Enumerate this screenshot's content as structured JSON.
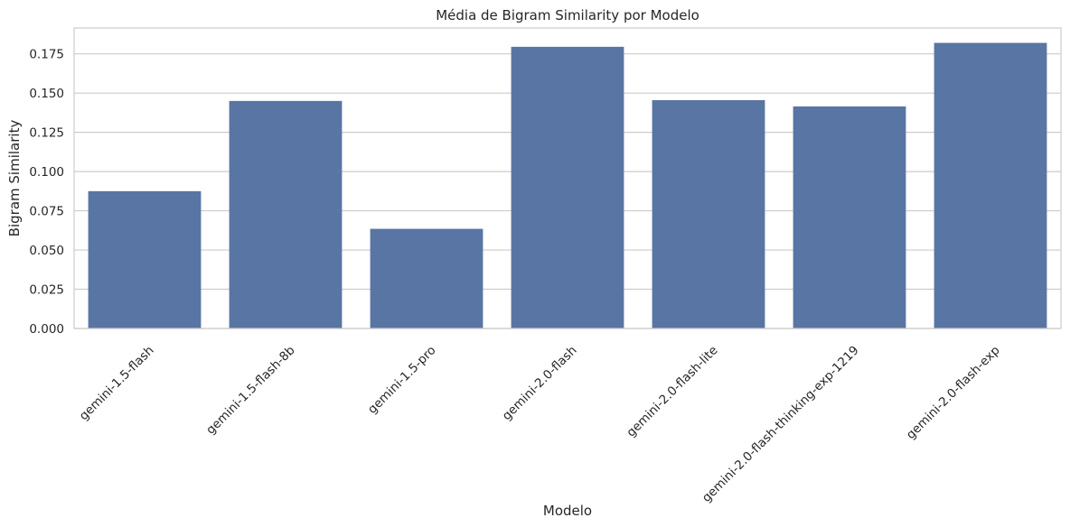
{
  "chart_data": {
    "type": "bar",
    "title": "Média de Bigram Similarity por Modelo",
    "xlabel": "Modelo",
    "ylabel": "Bigram Similarity",
    "categories": [
      "gemini-1.5-flash",
      "gemini-1.5-flash-8b",
      "gemini-1.5-pro",
      "gemini-2.0-flash",
      "gemini-2.0-flash-lite",
      "gemini-2.0-flash-thinking-exp-1219",
      "gemini-2.0-flash-exp"
    ],
    "values": [
      0.0875,
      0.145,
      0.0635,
      0.1795,
      0.1455,
      0.1415,
      0.182
    ],
    "ylim": [
      0,
      0.1915
    ],
    "yticks": [
      "0.000",
      "0.025",
      "0.050",
      "0.075",
      "0.100",
      "0.125",
      "0.150",
      "0.175"
    ],
    "grid": true,
    "colors": {
      "bar": "#5975a4",
      "grid": "#cccccc",
      "frame": "#cccccc"
    }
  }
}
